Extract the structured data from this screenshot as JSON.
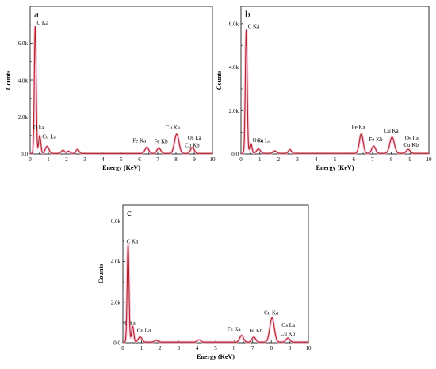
{
  "chart_data": [
    {
      "type": "line",
      "panel_label": "a",
      "xlabel": "Energy (KeV)",
      "ylabel": "Counts",
      "xlim": [
        0,
        10
      ],
      "ylim": [
        0,
        8000
      ],
      "x_ticks": [
        0,
        1,
        2,
        3,
        4,
        5,
        6,
        7,
        8,
        9,
        10
      ],
      "y_ticks": [
        {
          "value": 0,
          "label": "0.0"
        },
        {
          "value": 2000,
          "label": "2.0k"
        },
        {
          "value": 4000,
          "label": "4.0k"
        },
        {
          "value": 6000,
          "label": "6.0k"
        }
      ],
      "baseline": 30,
      "peaks": [
        {
          "x": 0.28,
          "height": 6900,
          "width": 0.05,
          "label": "C Ka"
        },
        {
          "x": 0.525,
          "height": 950,
          "width": 0.06,
          "label": "O ka"
        },
        {
          "x": 0.93,
          "height": 380,
          "width": 0.1,
          "label": "Cu La"
        },
        {
          "x": 1.8,
          "height": 170,
          "width": 0.09,
          "label": ""
        },
        {
          "x": 2.1,
          "height": 120,
          "width": 0.08,
          "label": ""
        },
        {
          "x": 2.6,
          "height": 220,
          "width": 0.08,
          "label": ""
        },
        {
          "x": 6.4,
          "height": 330,
          "width": 0.1,
          "label": "Fe Ka"
        },
        {
          "x": 7.06,
          "height": 290,
          "width": 0.1,
          "label": "Fe Kb"
        },
        {
          "x": 8.04,
          "height": 1050,
          "width": 0.12,
          "label": "Cu Ka"
        },
        {
          "x": 8.9,
          "height": 320,
          "width": 0.1,
          "label": "Os La"
        },
        {
          "x": 8.92,
          "height": 0,
          "width": 0.1,
          "label": "Cu Kb"
        }
      ]
    },
    {
      "type": "line",
      "panel_label": "b",
      "xlabel": "Energy (KeV)",
      "ylabel": "Counts",
      "xlim": [
        0,
        10
      ],
      "ylim": [
        0,
        6800
      ],
      "x_ticks": [
        0,
        1,
        2,
        3,
        4,
        5,
        6,
        7,
        8,
        9,
        10
      ],
      "y_ticks": [
        {
          "value": 0,
          "label": "0.0"
        },
        {
          "value": 2000,
          "label": "2.0k"
        },
        {
          "value": 4000,
          "label": "4.0k"
        },
        {
          "value": 6000,
          "label": "6.0k"
        }
      ],
      "baseline": 30,
      "peaks": [
        {
          "x": 0.28,
          "height": 5700,
          "width": 0.05,
          "label": "C Ka"
        },
        {
          "x": 0.525,
          "height": 450,
          "width": 0.06,
          "label": "O ka"
        },
        {
          "x": 0.93,
          "height": 200,
          "width": 0.1,
          "label": "Cu La"
        },
        {
          "x": 1.8,
          "height": 110,
          "width": 0.09,
          "label": ""
        },
        {
          "x": 2.6,
          "height": 170,
          "width": 0.08,
          "label": ""
        },
        {
          "x": 6.4,
          "height": 900,
          "width": 0.1,
          "label": "Fe Ka"
        },
        {
          "x": 7.06,
          "height": 330,
          "width": 0.1,
          "label": "Fe Kb"
        },
        {
          "x": 8.04,
          "height": 740,
          "width": 0.12,
          "label": "Cu Ka"
        },
        {
          "x": 8.9,
          "height": 180,
          "width": 0.1,
          "label": "Os La"
        },
        {
          "x": 8.92,
          "height": 0,
          "width": 0.1,
          "label": "Cu Kb"
        }
      ]
    },
    {
      "type": "line",
      "panel_label": "c",
      "xlabel": "Energy (KeV)",
      "ylabel": "Counts",
      "xlim": [
        0,
        10
      ],
      "ylim": [
        0,
        6800
      ],
      "x_ticks": [
        0,
        1,
        2,
        3,
        4,
        5,
        6,
        7,
        8,
        9,
        10
      ],
      "y_ticks": [
        {
          "value": 0,
          "label": "0.0"
        },
        {
          "value": 2000,
          "label": "2.0k"
        },
        {
          "value": 4000,
          "label": "4.0k"
        },
        {
          "value": 6000,
          "label": "6.0k"
        }
      ],
      "baseline": 30,
      "peaks": [
        {
          "x": 0.28,
          "height": 4800,
          "width": 0.05,
          "label": "C Ka"
        },
        {
          "x": 0.525,
          "height": 780,
          "width": 0.06,
          "label": "O ka"
        },
        {
          "x": 0.93,
          "height": 260,
          "width": 0.1,
          "label": "Cu La"
        },
        {
          "x": 1.8,
          "height": 90,
          "width": 0.09,
          "label": ""
        },
        {
          "x": 4.1,
          "height": 110,
          "width": 0.1,
          "label": ""
        },
        {
          "x": 6.4,
          "height": 330,
          "width": 0.1,
          "label": "Fe Ka"
        },
        {
          "x": 7.06,
          "height": 250,
          "width": 0.1,
          "label": "Fe Kb"
        },
        {
          "x": 8.04,
          "height": 1200,
          "width": 0.12,
          "label": "Cu Ka"
        },
        {
          "x": 8.9,
          "height": 200,
          "width": 0.1,
          "label": "Os La"
        },
        {
          "x": 8.92,
          "height": 0,
          "width": 0.1,
          "label": "Cu Kb"
        }
      ]
    }
  ]
}
